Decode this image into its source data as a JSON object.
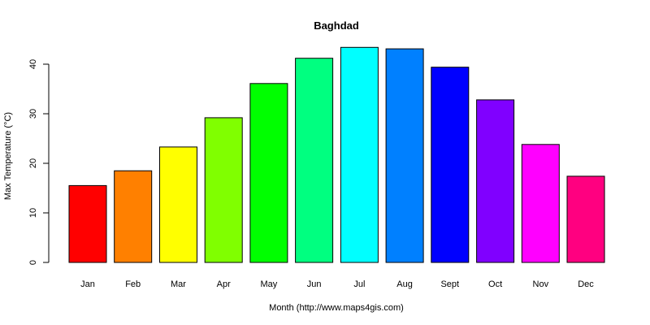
{
  "chart_data": {
    "type": "bar",
    "title": "Baghdad",
    "xlabel": "Month (http://www.maps4gis.com)",
    "ylabel": "Max Temperature (°C)",
    "categories": [
      "Jan",
      "Feb",
      "Mar",
      "Apr",
      "May",
      "Jun",
      "Jul",
      "Aug",
      "Sept",
      "Oct",
      "Nov",
      "Dec"
    ],
    "values": [
      15.5,
      18.5,
      23.3,
      29.2,
      36.1,
      41.2,
      43.4,
      43.1,
      39.4,
      32.8,
      23.8,
      17.4
    ],
    "colors": [
      "#FF0000",
      "#FF8000",
      "#FFFF00",
      "#80FF00",
      "#00FF00",
      "#00FF80",
      "#00FFFF",
      "#0080FF",
      "#0000FF",
      "#8000FF",
      "#FF00FF",
      "#FF0080"
    ],
    "yticks": [
      0,
      10,
      20,
      30,
      40
    ],
    "ylim": [
      0,
      45
    ],
    "grid": false,
    "legend": "none"
  }
}
